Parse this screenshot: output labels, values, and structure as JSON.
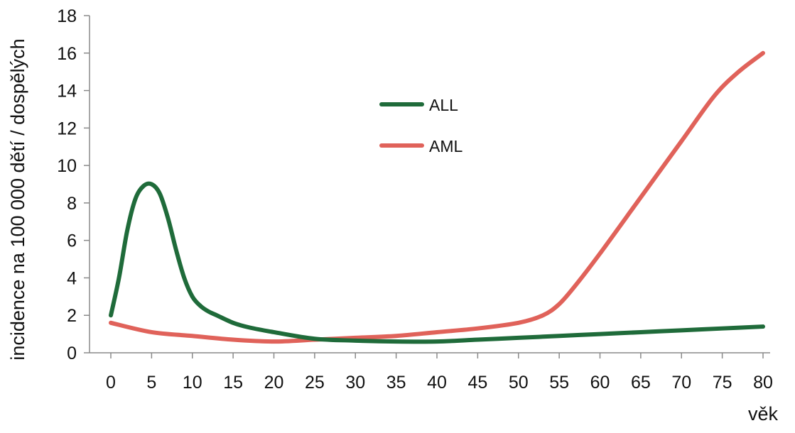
{
  "chart_data": {
    "type": "line",
    "title": "",
    "xlabel": "věk",
    "ylabel": "incidence na 100 000 dětí / dospělých",
    "xlim": [
      0,
      80
    ],
    "ylim": [
      0,
      18
    ],
    "x_ticks": [
      0,
      5,
      10,
      15,
      20,
      25,
      30,
      35,
      40,
      45,
      50,
      55,
      60,
      65,
      70,
      75,
      80
    ],
    "y_ticks": [
      0,
      2,
      4,
      6,
      8,
      10,
      12,
      14,
      16,
      18
    ],
    "grid": false,
    "legend_position": "center-left",
    "series": [
      {
        "name": "ALL",
        "color": "#1f6b3a",
        "points": [
          [
            0,
            2.0
          ],
          [
            1,
            4.0
          ],
          [
            2,
            6.5
          ],
          [
            3,
            8.2
          ],
          [
            4,
            8.9
          ],
          [
            5,
            9.0
          ],
          [
            6,
            8.5
          ],
          [
            7,
            7.2
          ],
          [
            8,
            5.5
          ],
          [
            9,
            4.0
          ],
          [
            10,
            3.0
          ],
          [
            11,
            2.5
          ],
          [
            12,
            2.2
          ],
          [
            13,
            2.0
          ],
          [
            15,
            1.6
          ],
          [
            17,
            1.35
          ],
          [
            20,
            1.1
          ],
          [
            25,
            0.75
          ],
          [
            30,
            0.65
          ],
          [
            35,
            0.6
          ],
          [
            40,
            0.6
          ],
          [
            45,
            0.7
          ],
          [
            50,
            0.8
          ],
          [
            55,
            0.9
          ],
          [
            60,
            1.0
          ],
          [
            65,
            1.1
          ],
          [
            70,
            1.2
          ],
          [
            75,
            1.3
          ],
          [
            80,
            1.4
          ]
        ]
      },
      {
        "name": "AML",
        "color": "#e0625a",
        "points": [
          [
            0,
            1.6
          ],
          [
            5,
            1.1
          ],
          [
            10,
            0.9
          ],
          [
            15,
            0.7
          ],
          [
            20,
            0.6
          ],
          [
            25,
            0.7
          ],
          [
            30,
            0.8
          ],
          [
            35,
            0.9
          ],
          [
            40,
            1.1
          ],
          [
            45,
            1.3
          ],
          [
            50,
            1.6
          ],
          [
            53,
            2.0
          ],
          [
            55,
            2.6
          ],
          [
            57,
            3.6
          ],
          [
            60,
            5.3
          ],
          [
            65,
            8.3
          ],
          [
            70,
            11.3
          ],
          [
            74,
            13.7
          ],
          [
            77,
            15.0
          ],
          [
            80,
            16.0
          ]
        ]
      }
    ]
  }
}
